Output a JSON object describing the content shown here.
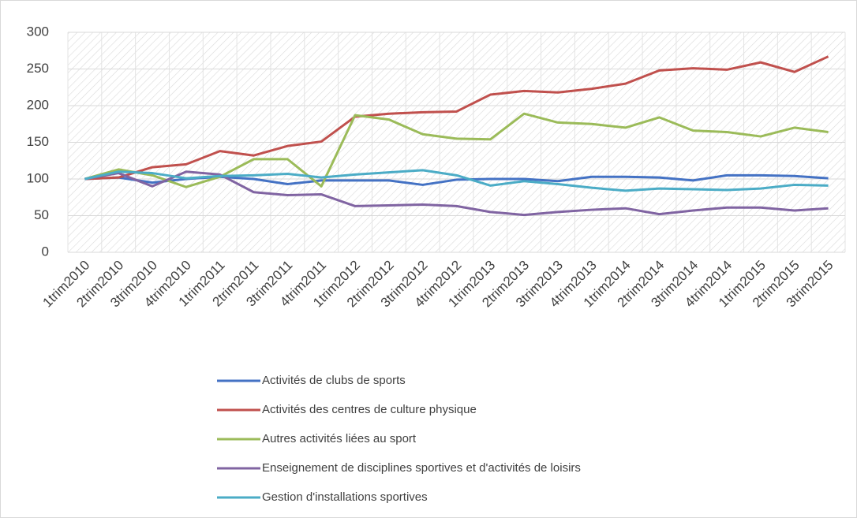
{
  "chart_data": {
    "type": "line",
    "categories": [
      "1trim2010",
      "2trim2010",
      "3trim2010",
      "4trim2010",
      "1trim2011",
      "2trim2011",
      "3trim2011",
      "4trim2011",
      "1trim2012",
      "2trim2012",
      "3trim2012",
      "4trim2012",
      "1trim2013",
      "2trim2013",
      "3trim2013",
      "4trim2013",
      "1trim2014",
      "2trim2014",
      "3trim2014",
      "4trim2014",
      "1trim2015",
      "2trim2015",
      "3trim2015"
    ],
    "series": [
      {
        "name": "Activités de clubs de sports",
        "color": "#4472c4",
        "values": [
          100,
          102,
          95,
          100,
          103,
          100,
          93,
          98,
          98,
          98,
          92,
          99,
          100,
          100,
          97,
          103,
          103,
          102,
          98,
          105,
          105,
          104,
          101
        ]
      },
      {
        "name": "Activités des centres de culture physique",
        "color": "#c0504d",
        "values": [
          100,
          102,
          116,
          120,
          138,
          132,
          145,
          151,
          185,
          189,
          191,
          192,
          215,
          220,
          218,
          223,
          230,
          248,
          251,
          249,
          259,
          246,
          267
        ]
      },
      {
        "name": "Autres activités liées au sport",
        "color": "#9bbb59",
        "values": [
          100,
          113,
          105,
          89,
          103,
          127,
          127,
          90,
          187,
          181,
          161,
          155,
          154,
          189,
          177,
          175,
          170,
          184,
          166,
          164,
          158,
          170,
          164
        ]
      },
      {
        "name": "Enseignement de disciplines sportives et d'activités de loisirs",
        "color": "#8064a2",
        "values": [
          100,
          108,
          90,
          110,
          106,
          82,
          78,
          79,
          63,
          64,
          65,
          63,
          55,
          51,
          55,
          58,
          60,
          52,
          57,
          61,
          61,
          57,
          60
        ]
      },
      {
        "name": "Gestion d'installations sportives",
        "color": "#4bacc6",
        "values": [
          100,
          110,
          108,
          101,
          104,
          105,
          107,
          102,
          106,
          109,
          112,
          105,
          91,
          97,
          93,
          88,
          84,
          87,
          86,
          85,
          87,
          92,
          91
        ]
      }
    ],
    "ylim": [
      0,
      300
    ],
    "yticks": [
      0,
      50,
      100,
      150,
      200,
      250,
      300
    ],
    "grid": true,
    "legend": "bottom"
  }
}
